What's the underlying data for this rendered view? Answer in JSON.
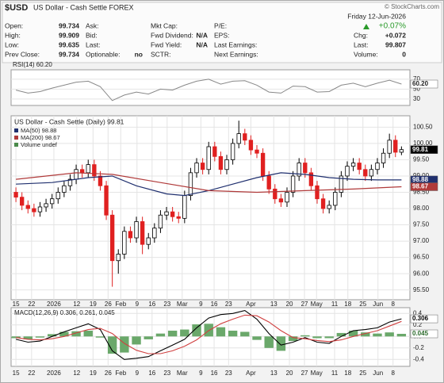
{
  "header": {
    "symbol": "$USD",
    "name": "US Dollar - Cash Settle FOREX",
    "source": "© StockCharts.com",
    "date": "Friday  12-Jun-2026",
    "change": "+0.07%",
    "rows": [
      [
        {
          "label": "Open:",
          "value": 99.734
        },
        {
          "label": "Ask:"
        },
        {
          "label": "Mkt Cap:"
        },
        {
          "label": "P/E:"
        }
      ],
      [
        {
          "label": "High:",
          "value": 99.909
        },
        {
          "label": "Bid:"
        },
        {
          "label": "Fwd Dividend:",
          "value": "N/A"
        },
        {
          "label": "EPS:"
        },
        {
          "label": "Chg:",
          "value": "+0.072"
        }
      ],
      [
        {
          "label": "Low:",
          "value": 99.635
        },
        {
          "label": "Last:"
        },
        {
          "label": "Fwd Yield:",
          "value": "N/A"
        },
        {
          "label": "Last Earnings:"
        },
        {
          "label": "Last:",
          "value": 99.807
        }
      ],
      [
        {
          "label": "Prev Close:",
          "value": 99.734
        },
        {
          "label": "Optionable:",
          "value": "no"
        },
        {
          "label": "SCTR:"
        },
        {
          "label": "Next Earnings:"
        },
        {
          "label": "Volume:",
          "value": 0
        }
      ]
    ]
  },
  "chart_data": [
    {
      "type": "line",
      "title": "RSI(14)",
      "last_label": "60.20",
      "color": "#888888",
      "x": [
        0,
        2,
        4,
        6,
        8,
        10,
        12,
        14,
        16,
        18,
        20,
        22,
        24,
        26,
        28,
        30,
        32,
        34,
        36,
        38,
        40,
        42,
        44,
        46,
        48,
        50,
        52,
        54,
        56,
        58,
        60,
        62,
        64
      ],
      "values": [
        48,
        42,
        45,
        52,
        58,
        64,
        66,
        55,
        27,
        38,
        44,
        40,
        50,
        48,
        58,
        66,
        70,
        60,
        66,
        67,
        58,
        44,
        42,
        56,
        55,
        44,
        45,
        58,
        62,
        55,
        62,
        68,
        60.2
      ],
      "xlim": [
        -0.8,
        65.4
      ],
      "ylim": [
        17,
        89
      ],
      "yticks": [
        70,
        50,
        30
      ],
      "grid": true
    },
    {
      "type": "candlestick",
      "title": "US Dollar - Cash Settle (Daily) 99.81",
      "legend_extra": "Volume undef",
      "up_color": "#000000",
      "down_color": "#e02020",
      "open": [
        98.5,
        98.35,
        98.1,
        98.0,
        97.9,
        98.05,
        98.15,
        98.3,
        98.5,
        98.7,
        98.9,
        99.2,
        99.1,
        99.35,
        99.0,
        98.7,
        97.8,
        96.4,
        96.6,
        97.3,
        97.1,
        97.6,
        96.9,
        97.1,
        97.4,
        97.8,
        97.9,
        97.75,
        97.7,
        98.4,
        99.1,
        99.4,
        99.2,
        99.9,
        99.6,
        99.2,
        99.5,
        100.0,
        100.3,
        100.1,
        99.8,
        99.7,
        99.0,
        98.6,
        98.3,
        98.2,
        98.5,
        99.0,
        99.4,
        99.1,
        98.7,
        98.3,
        98.0,
        98.1,
        98.5,
        99.0,
        99.3,
        99.4,
        99.2,
        99.0,
        99.2,
        99.4,
        99.7,
        100.1,
        99.73
      ],
      "high": [
        98.65,
        98.5,
        98.25,
        98.15,
        98.2,
        98.3,
        98.45,
        98.65,
        98.85,
        99.05,
        99.35,
        99.35,
        99.5,
        99.5,
        99.15,
        98.85,
        97.95,
        96.75,
        97.45,
        97.45,
        97.75,
        97.75,
        97.25,
        97.55,
        97.95,
        98.05,
        98.05,
        97.9,
        98.55,
        99.25,
        99.55,
        99.55,
        100.05,
        100.05,
        99.75,
        99.65,
        100.15,
        100.7,
        100.45,
        100.25,
        99.95,
        99.85,
        99.15,
        98.75,
        98.45,
        98.65,
        99.15,
        99.55,
        99.55,
        99.25,
        98.85,
        98.45,
        98.25,
        98.65,
        99.15,
        99.45,
        99.55,
        99.55,
        99.35,
        99.35,
        99.55,
        99.85,
        100.3,
        100.25,
        99.91
      ],
      "low": [
        98.2,
        97.95,
        97.85,
        97.75,
        97.75,
        97.9,
        98.0,
        98.15,
        98.35,
        98.55,
        98.75,
        98.95,
        98.95,
        98.85,
        98.55,
        97.65,
        95.6,
        96.0,
        96.45,
        96.95,
        96.95,
        96.6,
        96.75,
        96.95,
        97.25,
        97.65,
        97.6,
        97.55,
        97.55,
        98.25,
        98.95,
        99.05,
        99.05,
        99.45,
        99.05,
        99.05,
        99.35,
        99.85,
        99.95,
        99.65,
        99.55,
        98.85,
        98.45,
        98.15,
        98.05,
        98.05,
        98.35,
        98.85,
        98.95,
        98.55,
        98.15,
        97.85,
        97.85,
        97.95,
        98.35,
        98.85,
        99.15,
        99.05,
        98.85,
        98.85,
        99.05,
        99.25,
        99.55,
        99.58,
        99.64
      ],
      "close": [
        98.35,
        98.1,
        98.0,
        97.9,
        98.05,
        98.15,
        98.3,
        98.5,
        98.7,
        98.9,
        99.2,
        99.1,
        99.35,
        99.0,
        98.7,
        97.8,
        96.4,
        96.6,
        97.3,
        97.1,
        97.6,
        96.9,
        97.1,
        97.4,
        97.8,
        97.9,
        97.75,
        97.7,
        98.4,
        99.1,
        99.4,
        99.2,
        99.9,
        99.6,
        99.2,
        99.5,
        100.0,
        100.3,
        100.1,
        99.8,
        99.7,
        99.0,
        98.6,
        98.3,
        98.2,
        98.5,
        99.0,
        99.4,
        99.1,
        98.7,
        98.3,
        98.0,
        98.1,
        98.5,
        99.0,
        99.3,
        99.4,
        99.2,
        99.0,
        99.2,
        99.4,
        99.7,
        100.1,
        99.73,
        99.81
      ],
      "series": [
        {
          "name": "MA(50) 98.88",
          "color": "#1f2f6e",
          "x": [
            0,
            6,
            12,
            16,
            20,
            25,
            28,
            32,
            36,
            40,
            44,
            48,
            52,
            56,
            60,
            64
          ],
          "values": [
            98.75,
            98.8,
            98.95,
            99.0,
            98.7,
            98.45,
            98.4,
            98.55,
            98.75,
            98.95,
            99.1,
            99.05,
            98.95,
            98.9,
            98.88,
            98.88
          ]
        },
        {
          "name": "MA(200) 98.67",
          "color": "#b03a3a",
          "x": [
            0,
            10,
            16,
            24,
            32,
            40,
            48,
            56,
            64
          ],
          "values": [
            98.9,
            99.1,
            99.05,
            98.8,
            98.55,
            98.5,
            98.55,
            98.6,
            98.67
          ]
        }
      ],
      "xlim": [
        -0.8,
        65.4
      ],
      "ylim": [
        95.2,
        100.85
      ],
      "yticks": [
        {
          "value": 95.5,
          "label": "95.50"
        },
        {
          "value": 96,
          "label": "96.00"
        },
        {
          "value": 96.5,
          "label": "96.50"
        },
        {
          "value": 97,
          "label": "97.00"
        },
        {
          "value": 97.5,
          "label": "97.50"
        },
        {
          "value": 98,
          "label": "98.00"
        },
        {
          "value": 98.5,
          "label": "98.50"
        },
        {
          "value": 99,
          "label": "99.00"
        },
        {
          "value": 99.5,
          "label": "99.50"
        },
        {
          "value": 100,
          "label": "100.00"
        },
        {
          "value": 100.5,
          "label": "100.50"
        }
      ],
      "xticks": [
        {
          "value": 0,
          "label": "15"
        },
        {
          "value": 2.6,
          "label": "22"
        },
        {
          "value": 6.3,
          "label": "2026"
        },
        {
          "value": 10.1,
          "label": "12"
        },
        {
          "value": 12.8,
          "label": "19"
        },
        {
          "value": 15.3,
          "label": "26"
        },
        {
          "value": 17.4,
          "label": "Feb"
        },
        {
          "value": 20.1,
          "label": "9"
        },
        {
          "value": 22.6,
          "label": "16"
        },
        {
          "value": 25.1,
          "label": "23"
        },
        {
          "value": 27.6,
          "label": "Mar"
        },
        {
          "value": 30.7,
          "label": "9"
        },
        {
          "value": 32.9,
          "label": "16"
        },
        {
          "value": 35.3,
          "label": "23"
        },
        {
          "value": 39.0,
          "label": "Apr"
        },
        {
          "value": 42.8,
          "label": "13"
        },
        {
          "value": 45.4,
          "label": "20"
        },
        {
          "value": 47.9,
          "label": "27"
        },
        {
          "value": 49.9,
          "label": "May"
        },
        {
          "value": 52.9,
          "label": "11"
        },
        {
          "value": 55.1,
          "label": "18"
        },
        {
          "value": 57.6,
          "label": "25"
        },
        {
          "value": 60.1,
          "label": "Jun"
        },
        {
          "value": 62.6,
          "label": "8"
        }
      ],
      "grid": true
    },
    {
      "type": "macd",
      "title": "MACD(12,26,9) 0.306, 0.261, 0.045",
      "series": [
        {
          "kind": "bar",
          "color": "#6aa86a",
          "x": [
            0,
            2,
            4,
            6,
            8,
            10,
            12,
            14,
            16,
            18,
            20,
            22,
            24,
            26,
            28,
            30,
            32,
            34,
            36,
            38,
            40,
            42,
            44,
            46,
            48,
            50,
            52,
            54,
            56,
            58,
            60,
            62,
            64
          ],
          "values": [
            -0.03,
            -0.05,
            -0.02,
            0.04,
            0.08,
            0.09,
            0.1,
            -0.02,
            -0.3,
            -0.28,
            -0.14,
            -0.05,
            0.05,
            0.1,
            0.12,
            0.21,
            0.22,
            0.16,
            0.1,
            0.08,
            -0.06,
            -0.2,
            -0.25,
            -0.08,
            0.02,
            -0.03,
            -0.03,
            0.06,
            0.1,
            0.07,
            0.05,
            0.07,
            0.045
          ]
        },
        {
          "kind": "line",
          "color": "#000000",
          "x": [
            0,
            2,
            4,
            6,
            8,
            10,
            12,
            14,
            16,
            18,
            20,
            22,
            24,
            26,
            28,
            30,
            32,
            34,
            36,
            38,
            40,
            42,
            44,
            46,
            48,
            50,
            52,
            54,
            56,
            58,
            60,
            62,
            64
          ],
          "values": [
            -0.05,
            -0.1,
            -0.08,
            0.0,
            0.08,
            0.15,
            0.22,
            0.12,
            -0.25,
            -0.4,
            -0.38,
            -0.35,
            -0.25,
            -0.15,
            -0.05,
            0.15,
            0.32,
            0.38,
            0.4,
            0.45,
            0.3,
            0.05,
            -0.15,
            -0.1,
            -0.02,
            -0.1,
            -0.12,
            0.0,
            0.1,
            0.12,
            0.15,
            0.25,
            0.306
          ]
        },
        {
          "kind": "line",
          "color": "#d04040",
          "x": [
            0,
            2,
            4,
            6,
            8,
            10,
            12,
            14,
            16,
            18,
            20,
            22,
            24,
            26,
            28,
            30,
            32,
            34,
            36,
            38,
            40,
            42,
            44,
            46,
            48,
            50,
            52,
            54,
            56,
            58,
            60,
            62,
            64
          ],
          "values": [
            -0.02,
            -0.05,
            -0.06,
            -0.04,
            0.0,
            0.06,
            0.12,
            0.14,
            0.05,
            -0.12,
            -0.24,
            -0.3,
            -0.3,
            -0.25,
            -0.17,
            -0.06,
            0.1,
            0.22,
            0.3,
            0.37,
            0.36,
            0.25,
            0.1,
            -0.02,
            -0.04,
            -0.07,
            -0.09,
            -0.06,
            0.0,
            0.05,
            0.1,
            0.18,
            0.261
          ]
        }
      ],
      "xlim": [
        -0.8,
        65.4
      ],
      "ylim": [
        -0.52,
        0.5
      ],
      "yticks": [
        0.4,
        0.2,
        {
          "value": 0,
          "label": "0.0"
        },
        -0.2,
        -0.4
      ],
      "xticks": [
        {
          "value": 0,
          "label": "15"
        },
        {
          "value": 2.6,
          "label": "22"
        },
        {
          "value": 6.3,
          "label": "2026"
        },
        {
          "value": 10.1,
          "label": "12"
        },
        {
          "value": 12.8,
          "label": "19"
        },
        {
          "value": 15.3,
          "label": "26"
        },
        {
          "value": 17.4,
          "label": "Feb"
        },
        {
          "value": 20.1,
          "label": "9"
        },
        {
          "value": 22.6,
          "label": "16"
        },
        {
          "value": 25.1,
          "label": "23"
        },
        {
          "value": 27.6,
          "label": "Mar"
        },
        {
          "value": 30.7,
          "label": "9"
        },
        {
          "value": 32.9,
          "label": "16"
        },
        {
          "value": 35.3,
          "label": "23"
        },
        {
          "value": 39.0,
          "label": "Apr"
        },
        {
          "value": 42.8,
          "label": "13"
        },
        {
          "value": 45.4,
          "label": "20"
        },
        {
          "value": 47.9,
          "label": "27"
        },
        {
          "value": 49.9,
          "label": "May"
        },
        {
          "value": 52.9,
          "label": "11"
        },
        {
          "value": 55.1,
          "label": "18"
        },
        {
          "value": 57.6,
          "label": "25"
        },
        {
          "value": 60.1,
          "label": "Jun"
        },
        {
          "value": 62.6,
          "label": "8"
        }
      ],
      "grid": true
    }
  ]
}
